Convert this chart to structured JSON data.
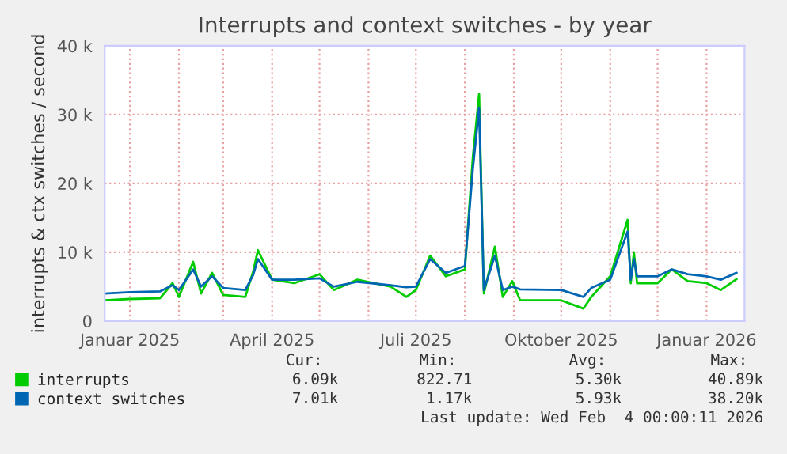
{
  "chart_data": {
    "type": "line",
    "title": "Interrupts and context switches - by year",
    "ylabel": "interrupts & ctx switches / second",
    "x": [
      "2024-12-16",
      "2025-01-01",
      "2025-01-20",
      "2025-01-28",
      "2025-02-01",
      "2025-02-10",
      "2025-02-15",
      "2025-02-22",
      "2025-03-01",
      "2025-03-15",
      "2025-03-20",
      "2025-03-23",
      "2025-04-01",
      "2025-04-15",
      "2025-05-01",
      "2025-05-10",
      "2025-05-25",
      "2025-06-15",
      "2025-06-25",
      "2025-07-01",
      "2025-07-10",
      "2025-07-20",
      "2025-08-01",
      "2025-08-06",
      "2025-08-10",
      "2025-08-13",
      "2025-08-20",
      "2025-08-25",
      "2025-08-31",
      "2025-09-05",
      "2025-10-01",
      "2025-10-15",
      "2025-10-20",
      "2025-11-01",
      "2025-11-12",
      "2025-11-14",
      "2025-11-16",
      "2025-11-18",
      "2025-12-01",
      "2025-12-10",
      "2025-12-20",
      "2026-01-01",
      "2026-01-10",
      "2026-01-20"
    ],
    "series": [
      {
        "name": "interrupts",
        "color": "#00cc00",
        "values": [
          3000,
          3200,
          3300,
          5500,
          3500,
          8600,
          4000,
          7000,
          3800,
          3500,
          7200,
          10300,
          6000,
          5500,
          6800,
          4500,
          6000,
          5000,
          3500,
          4500,
          9500,
          6500,
          7500,
          23700,
          33000,
          4000,
          10800,
          3500,
          5800,
          3000,
          3000,
          1800,
          3500,
          6500,
          14700,
          5500,
          10000,
          5500,
          5500,
          7500,
          5800,
          5500,
          4500,
          6090
        ]
      },
      {
        "name": "context switches",
        "color": "#0066b3",
        "values": [
          4000,
          4200,
          4300,
          5200,
          4500,
          7500,
          5000,
          6500,
          4800,
          4500,
          6700,
          9000,
          6000,
          6000,
          6200,
          5000,
          5700,
          5200,
          4900,
          5000,
          9000,
          7000,
          8000,
          22000,
          31000,
          4500,
          9500,
          4500,
          5000,
          4600,
          4500,
          3500,
          4800,
          6000,
          13000,
          6000,
          9000,
          6500,
          6500,
          7500,
          6800,
          6500,
          6000,
          7010
        ]
      }
    ],
    "xlim": [
      "2024-12-16",
      "2026-01-25"
    ],
    "xticks": [
      {
        "value": "2025-01-01",
        "label": "Januar 2025"
      },
      {
        "value": "2025-02-01",
        "label": null
      },
      {
        "value": "2025-03-01",
        "label": null
      },
      {
        "value": "2025-04-01",
        "label": "April 2025"
      },
      {
        "value": "2025-05-01",
        "label": null
      },
      {
        "value": "2025-06-01",
        "label": null
      },
      {
        "value": "2025-07-01",
        "label": "Juli 2025"
      },
      {
        "value": "2025-08-01",
        "label": null
      },
      {
        "value": "2025-09-01",
        "label": null
      },
      {
        "value": "2025-10-01",
        "label": "Oktober 2025"
      },
      {
        "value": "2025-11-01",
        "label": null
      },
      {
        "value": "2025-12-01",
        "label": null
      },
      {
        "value": "2026-01-01",
        "label": "Januar 2026"
      }
    ],
    "ylim": [
      0,
      40000
    ],
    "yticks": [
      0,
      {
        "value": 10000,
        "label": "10 k"
      },
      {
        "value": 20000,
        "label": "20 k"
      },
      {
        "value": 30000,
        "label": "30 k"
      },
      {
        "value": 40000,
        "label": "40 k"
      }
    ],
    "grid": true,
    "legend": "bottom left",
    "marker": "none",
    "line_style": "solid",
    "annotations": [
      "Cur:",
      "Min:",
      "Avg:",
      "Max:",
      "6.09k",
      "822.71",
      "5.30k",
      "40.89k",
      "7.01k",
      "1.17k",
      "5.93k",
      "38.20k",
      "Last update: Wed Feb  4 00:00:11 2026"
    ]
  }
}
